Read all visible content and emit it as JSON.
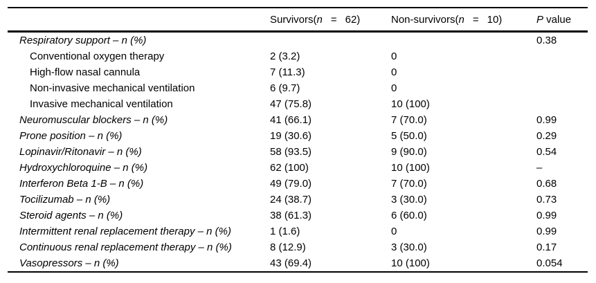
{
  "table": {
    "header": {
      "survivors": {
        "prefix": "Survivors(",
        "n": "n",
        "eq": "=",
        "count": "62)"
      },
      "non_survivors": {
        "prefix": "Non-survivors(",
        "n": "n",
        "eq": "=",
        "count": "10)"
      },
      "p_value": {
        "p": "P",
        "rest": " value"
      }
    },
    "rows": [
      {
        "label": "Respiratory support – n (%)",
        "italic": true,
        "indent": false,
        "survivors": "",
        "non_survivors": "",
        "p": "0.38"
      },
      {
        "label": "Conventional oxygen therapy",
        "italic": false,
        "indent": true,
        "survivors": "2 (3.2)",
        "non_survivors": "0",
        "p": ""
      },
      {
        "label": "High-flow nasal cannula",
        "italic": false,
        "indent": true,
        "survivors": "7 (11.3)",
        "non_survivors": "0",
        "p": ""
      },
      {
        "label": "Non-invasive mechanical ventilation",
        "italic": false,
        "indent": true,
        "survivors": "6 (9.7)",
        "non_survivors": "0",
        "p": ""
      },
      {
        "label": "Invasive mechanical ventilation",
        "italic": false,
        "indent": true,
        "survivors": "47 (75.8)",
        "non_survivors": "10 (100)",
        "p": ""
      },
      {
        "label": "Neuromuscular blockers – n (%)",
        "italic": true,
        "indent": false,
        "survivors": "41 (66.1)",
        "non_survivors": "7 (70.0)",
        "p": "0.99"
      },
      {
        "label": "Prone position – n (%)",
        "italic": true,
        "indent": false,
        "survivors": "19 (30.6)",
        "non_survivors": "5 (50.0)",
        "p": "0.29"
      },
      {
        "label": "Lopinavir/Ritonavir – n (%)",
        "italic": true,
        "indent": false,
        "survivors": "58 (93.5)",
        "non_survivors": "9 (90.0)",
        "p": "0.54"
      },
      {
        "label": "Hydroxychloroquine – n (%)",
        "italic": true,
        "indent": false,
        "survivors": "62 (100)",
        "non_survivors": "10 (100)",
        "p": "–"
      },
      {
        "label": "Interferon Beta 1-B – n (%)",
        "italic": true,
        "indent": false,
        "survivors": "49 (79.0)",
        "non_survivors": "7 (70.0)",
        "p": "0.68"
      },
      {
        "label": "Tocilizumab – n (%)",
        "italic": true,
        "indent": false,
        "survivors": "24 (38.7)",
        "non_survivors": "3 (30.0)",
        "p": "0.73"
      },
      {
        "label": "Steroid agents – n (%)",
        "italic": true,
        "indent": false,
        "survivors": "38 (61.3)",
        "non_survivors": "6 (60.0)",
        "p": "0.99"
      },
      {
        "label": "Intermittent renal replacement therapy – n (%)",
        "italic": true,
        "indent": false,
        "survivors": "1 (1.6)",
        "non_survivors": "0",
        "p": "0.99"
      },
      {
        "label": "Continuous renal replacement therapy – n (%)",
        "italic": true,
        "indent": false,
        "survivors": "8 (12.9)",
        "non_survivors": "3 (30.0)",
        "p": "0.17"
      },
      {
        "label": "Vasopressors – n (%)",
        "italic": true,
        "indent": false,
        "survivors": "43 (69.4)",
        "non_survivors": "10 (100)",
        "p": "0.054"
      }
    ]
  }
}
